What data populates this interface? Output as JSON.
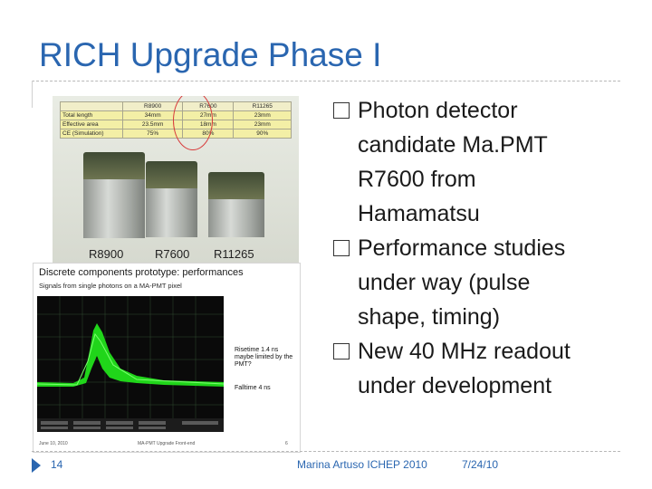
{
  "slide": {
    "title": "RICH Upgrade Phase I",
    "bullets": [
      {
        "lines": [
          "Photon detector",
          "candidate Ma.PMT",
          "R7600 from",
          "Hamamatsu"
        ]
      },
      {
        "lines": [
          "Performance studies",
          "under way (pulse",
          "shape, timing)"
        ]
      },
      {
        "lines": [
          "New 40 MHz readout",
          "under development"
        ]
      }
    ],
    "slide_number": "14",
    "footer_center": "Marina Artuso ICHEP 2010",
    "footer_date": "7/24/10"
  },
  "photo": {
    "table": {
      "headers": [
        "",
        "R8900",
        "R7600",
        "R11265"
      ],
      "rows": [
        [
          "Total length",
          "34mm",
          "27mm",
          "23mm"
        ],
        [
          "Effective area",
          "23.5mm",
          "18mm",
          "23mm"
        ],
        [
          "CE (Simulation)",
          "75%",
          "80%",
          "90%"
        ]
      ]
    },
    "pmt_labels": [
      "R8900",
      "R7600",
      "R11265"
    ]
  },
  "scope_panel": {
    "heading": "Discrete components prototype: performances",
    "subheading": "Signals from single photons on a MA-PMT pixel",
    "note_rise": "Risetime 1.4 ns maybe limited by the PMT?",
    "note_fall": "Falltime 4 ns",
    "footer_left": "June 10, 2010",
    "footer_center": "MA-PMT Upgrade Front-end",
    "footer_right": "6"
  },
  "colors": {
    "title": "#2a66b0",
    "trace": "#22e01b"
  }
}
